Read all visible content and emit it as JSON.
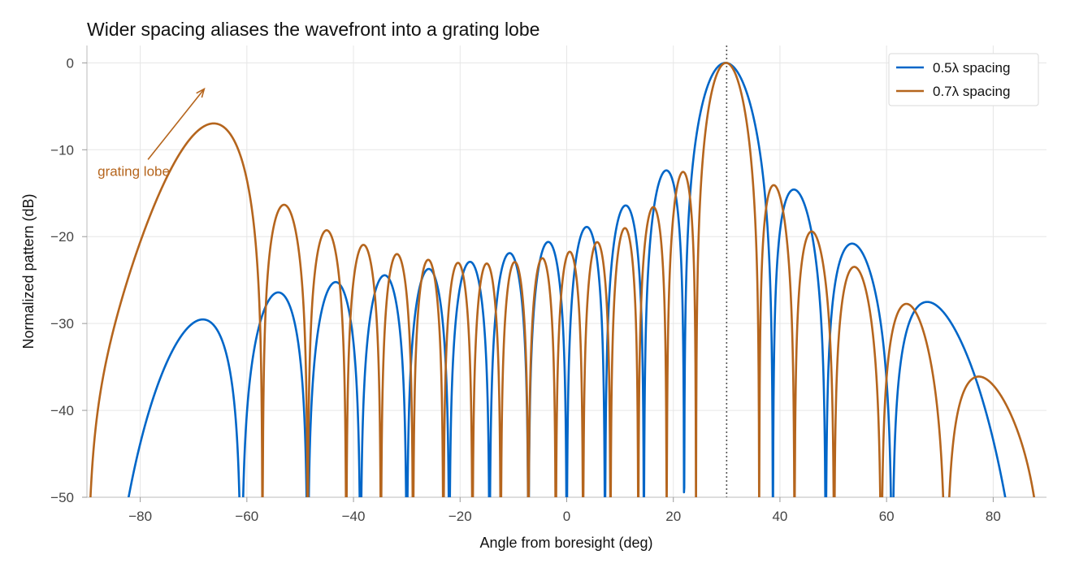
{
  "chart_data": {
    "type": "line",
    "title": "Wider spacing aliases the wavefront into a grating lobe",
    "xlabel": "Angle from boresight (deg)",
    "ylabel": "Normalized pattern (dB)",
    "xlim": [
      -90,
      90
    ],
    "ylim": [
      -50,
      2
    ],
    "xticks": [
      -80,
      -60,
      -40,
      -20,
      0,
      20,
      40,
      60,
      80
    ],
    "xtick_labels": [
      "−80",
      "−60",
      "−40",
      "−20",
      "0",
      "20",
      "40",
      "60",
      "80"
    ],
    "yticks": [
      0,
      -10,
      -20,
      -30,
      -40,
      -50
    ],
    "ytick_labels": [
      "0",
      "−10",
      "−20",
      "−30",
      "−40",
      "−50"
    ],
    "grid": true,
    "legend_position": "top-right",
    "steer_angle_deg": 30,
    "series": [
      {
        "name": "0.5λ spacing",
        "color": "#0066c8",
        "element_count": 16,
        "spacing_wavelengths": 0.5
      },
      {
        "name": "0.7λ spacing",
        "color": "#b5651d",
        "element_count": 16,
        "spacing_wavelengths": 0.7
      }
    ],
    "annotations": [
      {
        "text": "grating lobe",
        "color": "#b5651d",
        "text_at": [
          -88,
          -13
        ],
        "arrow_to": [
          -68,
          -3
        ]
      }
    ]
  }
}
